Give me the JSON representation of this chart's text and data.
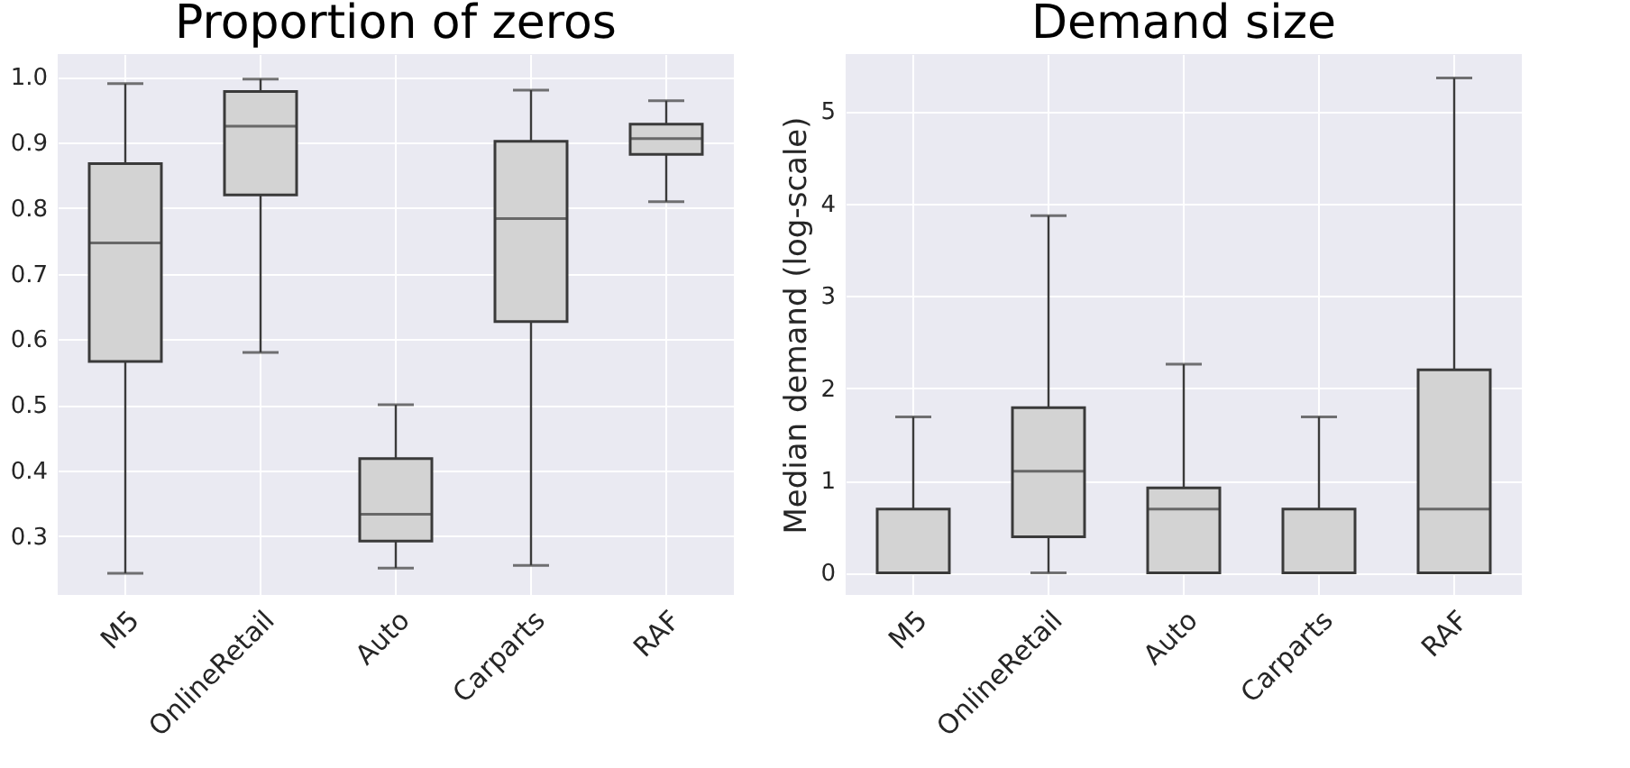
{
  "chart_data": [
    {
      "type": "box",
      "title": "Proportion of zeros",
      "categories": [
        "M5",
        "OnlineRetail",
        "Auto",
        "Carparts",
        "RAF"
      ],
      "ylim": [
        0.21,
        1.035
      ],
      "yticks": [
        0.3,
        0.4,
        0.5,
        0.6,
        0.7,
        0.8,
        0.9,
        {
          "value": 1,
          "label": "1.0"
        }
      ],
      "grid": true,
      "boxes": [
        {
          "low": 0.243,
          "q1": 0.566,
          "median": 0.747,
          "q3": 0.868,
          "high": 0.99
        },
        {
          "low": 0.58,
          "q1": 0.82,
          "median": 0.925,
          "q3": 0.978,
          "high": 0.997
        },
        {
          "low": 0.251,
          "q1": 0.292,
          "median": 0.333,
          "q3": 0.418,
          "high": 0.5
        },
        {
          "low": 0.255,
          "q1": 0.627,
          "median": 0.784,
          "q3": 0.902,
          "high": 0.98
        },
        {
          "low": 0.81,
          "q1": 0.882,
          "median": 0.906,
          "q3": 0.928,
          "high": 0.964
        }
      ],
      "color": "#d3d3d3"
    },
    {
      "type": "box",
      "title": "Demand size",
      "ylabel": "Median demand (log-scale)",
      "categories": [
        "M5",
        "OnlineRetail",
        "Auto",
        "Carparts",
        "RAF"
      ],
      "ylim": [
        -0.24,
        5.62
      ],
      "yticks": [
        0,
        1,
        2,
        3,
        4,
        5
      ],
      "grid": true,
      "boxes": [
        {
          "low": 0,
          "q1": 0,
          "median": 0,
          "q3": 0.69,
          "high": 1.69
        },
        {
          "low": 0,
          "q1": 0.39,
          "median": 1.1,
          "q3": 1.79,
          "high": 3.87
        },
        {
          "low": 0,
          "q1": 0,
          "median": 0.69,
          "q3": 0.92,
          "high": 2.26
        },
        {
          "low": 0,
          "q1": 0,
          "median": 0,
          "q3": 0.69,
          "high": 1.69
        },
        {
          "low": 0,
          "q1": 0,
          "median": 0.69,
          "q3": 2.2,
          "high": 5.36
        }
      ],
      "color": "#d3d3d3"
    }
  ]
}
